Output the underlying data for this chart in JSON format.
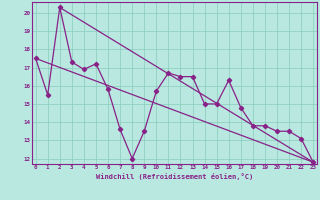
{
  "xlabel": "Windchill (Refroidissement éolien,°C)",
  "background_color": "#b8e8e0",
  "grid_color": "#88ccbb",
  "line_color": "#882288",
  "spine_color": "#882288",
  "yticks": [
    12,
    13,
    14,
    15,
    16,
    17,
    18,
    19,
    20
  ],
  "xticks": [
    0,
    1,
    2,
    3,
    4,
    5,
    6,
    7,
    8,
    9,
    10,
    11,
    12,
    13,
    14,
    15,
    16,
    17,
    18,
    19,
    20,
    21,
    22,
    23
  ],
  "line1_x": [
    0,
    1,
    2,
    3,
    4,
    5,
    6,
    7,
    8,
    9,
    10,
    11,
    12,
    13,
    14,
    15,
    16,
    17,
    18,
    19,
    20,
    21,
    22,
    23
  ],
  "line1_y": [
    17.5,
    15.5,
    20.3,
    17.3,
    16.9,
    17.2,
    15.8,
    13.6,
    12.0,
    13.5,
    15.7,
    16.7,
    16.5,
    16.5,
    15.0,
    15.0,
    16.3,
    14.8,
    13.8,
    13.8,
    13.5,
    13.5,
    13.1,
    11.8
  ],
  "line2_x": [
    0,
    23
  ],
  "line2_y": [
    17.5,
    11.8
  ],
  "line3_x": [
    2,
    23
  ],
  "line3_y": [
    20.3,
    11.8
  ],
  "xlim": [
    -0.3,
    23.3
  ],
  "ylim": [
    11.7,
    20.6
  ]
}
